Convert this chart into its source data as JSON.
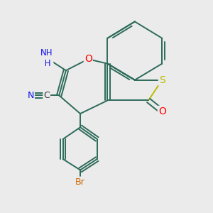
{
  "background_color": "#ebebeb",
  "bond_color": "#2d6b5a",
  "atom_colors": {
    "N": "#1010ee",
    "O": "#ff0000",
    "S": "#bbbb00",
    "Br": "#cc6600",
    "C": "#333333"
  },
  "figsize": [
    3.0,
    3.0
  ],
  "dpi": 100
}
